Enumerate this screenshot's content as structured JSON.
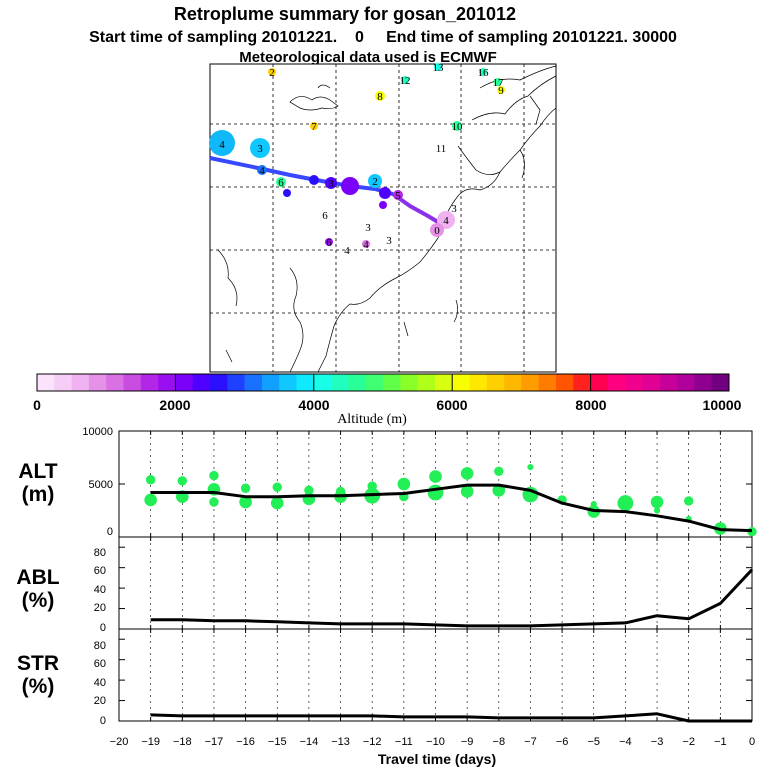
{
  "header": {
    "title": "Retroplume summary for gosan_201012",
    "sampling_line": "Start time of sampling 20101221.    0     End time of sampling 20101221. 30000",
    "met_line": "Meteorological data used is ECMWF"
  },
  "colorbar": {
    "title": "Altitude (m)",
    "tick_labels": [
      "0",
      "2000",
      "4000",
      "6000",
      "8000",
      "10000"
    ],
    "colors": [
      "#fbe4fb",
      "#f6cdf6",
      "#f0b2f0",
      "#e691e8",
      "#d970e3",
      "#c84ce0",
      "#b226e6",
      "#9a0ff0",
      "#7a00f8",
      "#4f00ff",
      "#2a10ff",
      "#1e40ff",
      "#1a70ff",
      "#12a0ff",
      "#10c8ff",
      "#10eaff",
      "#18ffe8",
      "#20ffc0",
      "#28ff98",
      "#40ff70",
      "#60ff48",
      "#88ff28",
      "#b0ff18",
      "#d8ff10",
      "#f8ff00",
      "#ffe800",
      "#ffd000",
      "#ffb800",
      "#ff9c00",
      "#ff7c00",
      "#ff5400",
      "#ff2020",
      "#ff0050",
      "#ff0080",
      "#f0008c",
      "#e00094",
      "#c8009a",
      "#b0009c",
      "#900090",
      "#700080"
    ]
  },
  "map": {
    "labels": [
      "2",
      "8",
      "12",
      "13",
      "16",
      "17",
      "9",
      "7",
      "10",
      "11",
      "4",
      "3",
      "4",
      "6",
      "3",
      "2",
      "5",
      "6",
      "3",
      "3",
      "6",
      "4",
      "4",
      "3",
      "4",
      "0"
    ]
  },
  "chart_data": [
    {
      "type": "line",
      "name": "ALT",
      "ylabel": "ALT (m)",
      "ylabel_lines": [
        "ALT",
        "(m)"
      ],
      "ylim": [
        0,
        10000
      ],
      "yticks": [
        0,
        5000,
        10000
      ],
      "ytick_labels": [
        "0",
        "5000",
        "10000"
      ],
      "x": [
        -19,
        -18,
        -17,
        -16,
        -15,
        -14,
        -13,
        -12,
        -11,
        -10,
        -9,
        -8,
        -7,
        -6,
        -5,
        -4,
        -3,
        -2,
        -1,
        0
      ],
      "values": [
        4200,
        4200,
        4200,
        3800,
        3800,
        3900,
        3900,
        4000,
        4100,
        4500,
        4900,
        4900,
        4400,
        3200,
        2500,
        2400,
        2000,
        1500,
        700,
        600
      ],
      "scatter": {
        "x": [
          -19,
          -19,
          -18,
          -18,
          -17,
          -17,
          -17,
          -16,
          -16,
          -15,
          -15,
          -14,
          -14,
          -13,
          -13,
          -12,
          -12,
          -11,
          -11,
          -10,
          -10,
          -9,
          -9,
          -8,
          -8,
          -7,
          -7,
          -6,
          -5,
          -5,
          -4,
          -3,
          -3,
          -2,
          -2,
          -1,
          0
        ],
        "y": [
          5400,
          3500,
          5300,
          3800,
          5800,
          4500,
          3300,
          4600,
          3300,
          4700,
          3200,
          4400,
          3600,
          4300,
          3800,
          4800,
          3900,
          5000,
          3800,
          5700,
          4200,
          6000,
          4300,
          6200,
          4400,
          6600,
          4000,
          3500,
          3100,
          2400,
          3200,
          3300,
          2500,
          3400,
          1700,
          800,
          500
        ],
        "size": [
          2,
          3,
          2,
          3,
          2,
          3,
          2,
          2,
          3,
          2,
          3,
          2,
          3,
          2,
          3,
          2,
          4,
          3,
          2,
          3,
          4,
          3,
          3,
          2,
          3,
          1,
          4,
          2,
          1,
          3,
          4,
          3,
          1,
          2,
          1,
          3,
          2
        ]
      }
    },
    {
      "type": "line",
      "name": "ABL",
      "ylabel": "ABL (%)",
      "ylabel_lines": [
        "ABL",
        "(%)"
      ],
      "ylim": [
        0,
        90
      ],
      "yticks": [
        0,
        20,
        40,
        60,
        80
      ],
      "ytick_labels": [
        "0",
        "20",
        "40",
        "60",
        "80"
      ],
      "x": [
        -19,
        -18,
        -17,
        -16,
        -15,
        -14,
        -13,
        -12,
        -11,
        -10,
        -9,
        -8,
        -7,
        -6,
        -5,
        -4,
        -3,
        -2,
        -1,
        0
      ],
      "values": [
        9,
        9,
        8,
        8,
        7,
        6,
        5,
        5,
        5,
        4,
        3,
        3,
        3,
        4,
        5,
        6,
        13,
        10,
        25,
        58
      ]
    },
    {
      "type": "line",
      "name": "STR",
      "ylabel": "STR (%)",
      "ylabel_lines": [
        "STR",
        "(%)"
      ],
      "ylim": [
        0,
        90
      ],
      "yticks": [
        0,
        20,
        40,
        60,
        80
      ],
      "ytick_labels": [
        "0",
        "20",
        "40",
        "60",
        "80"
      ],
      "x": [
        -19,
        -18,
        -17,
        -16,
        -15,
        -14,
        -13,
        -12,
        -11,
        -10,
        -9,
        -8,
        -7,
        -6,
        -5,
        -4,
        -3,
        -2,
        -1,
        0
      ],
      "values": [
        6,
        5,
        5,
        5,
        5,
        5,
        5,
        5,
        4,
        4,
        4,
        3,
        3,
        3,
        3,
        5,
        7,
        0,
        0,
        0
      ],
      "xlabel": "Travel time (days)",
      "xlim": [
        -20,
        0
      ],
      "xticks": [
        -20,
        -19,
        -18,
        -17,
        -16,
        -15,
        -14,
        -13,
        -12,
        -11,
        -10,
        -9,
        -8,
        -7,
        -6,
        -5,
        -4,
        -3,
        -2,
        -1,
        0
      ],
      "xtick_labels": [
        "−20",
        "−19",
        "−18",
        "−17",
        "−16",
        "−15",
        "−14",
        "−13",
        "−12",
        "−11",
        "−10",
        "−9",
        "−8",
        "−7",
        "−6",
        "−5",
        "−4",
        "−3",
        "−2",
        "−1",
        "0"
      ]
    }
  ]
}
